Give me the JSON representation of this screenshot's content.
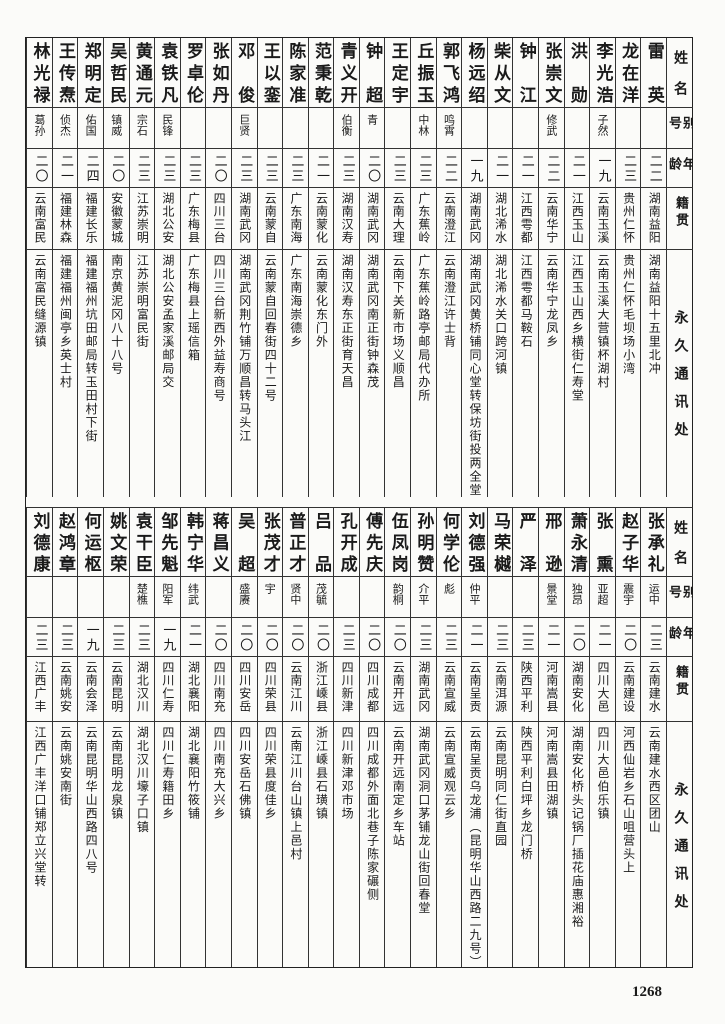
{
  "headers": {
    "name": "姓名",
    "alias": "别号",
    "age": "年龄",
    "native": "籍贯",
    "address": "永久通讯处"
  },
  "top_table": [
    {
      "name": "雷英",
      "alias": "",
      "age": "二二",
      "native": "湖南益阳",
      "address": "湖南益阳十五里北冲"
    },
    {
      "name": "龙在洋",
      "alias": "",
      "age": "二三",
      "native": "贵州仁怀",
      "address": "贵州仁怀毛坝场小湾"
    },
    {
      "name": "李光浩",
      "alias": "子然",
      "age": "一九",
      "native": "云南玉溪",
      "address": "云南玉溪大营镇杯湖村"
    },
    {
      "name": "洪勋",
      "alias": "",
      "age": "二一",
      "native": "江西玉山",
      "address": "江西玉山西乡横街仁寿堂"
    },
    {
      "name": "张崇文",
      "alias": "修武",
      "age": "二二",
      "native": "云南华宁",
      "address": "云南华宁龙凤乡"
    },
    {
      "name": "钟江",
      "alias": "",
      "age": "二一",
      "native": "江西雩都",
      "address": "江西雩都马鞍石"
    },
    {
      "name": "柴从文",
      "alias": "",
      "age": "二一",
      "native": "湖北浠水",
      "address": "湖北浠水关口跨河镇"
    },
    {
      "name": "杨远绍",
      "alias": "",
      "age": "一九",
      "native": "湖南武冈",
      "address": "湖南武冈黄桥铺同心堂转保坊街投两全堂"
    },
    {
      "name": "郭飞鸿",
      "alias": "鸣霄",
      "age": "二二",
      "native": "云南澄江",
      "address": "云南澄江许士背"
    },
    {
      "name": "丘振玉",
      "alias": "中林",
      "age": "二三",
      "native": "广东蕉岭",
      "address": "广东蕉岭路亭邮局代办所"
    },
    {
      "name": "王定宇",
      "alias": "",
      "age": "二三",
      "native": "云南大理",
      "address": "云南下关新市场义顺昌"
    },
    {
      "name": "钟超",
      "alias": "青",
      "age": "二〇",
      "native": "湖南武冈",
      "address": "湖南武冈南正街钟森茂"
    },
    {
      "name": "青义开",
      "alias": "伯衡",
      "age": "二三",
      "native": "湖南汉寿",
      "address": "湖南汉寿东正街育天昌"
    },
    {
      "name": "范秉乾",
      "alias": "",
      "age": "二一",
      "native": "云南蒙化",
      "address": "云南蒙化东门外"
    },
    {
      "name": "陈家准",
      "alias": "",
      "age": "二三",
      "native": "广东南海",
      "address": "广东南海崇德乡"
    },
    {
      "name": "王以銮",
      "alias": "",
      "age": "二三",
      "native": "云南蒙自",
      "address": "云南蒙自回春街四十二号"
    },
    {
      "name": "邓俊",
      "alias": "巨贤",
      "age": "二三",
      "native": "湖南武冈",
      "address": "湖南武冈荆竹铺万顺昌转马头江"
    },
    {
      "name": "张如丹",
      "alias": "",
      "age": "二〇",
      "native": "四川三台",
      "address": "四川三台新西外益寿商号"
    },
    {
      "name": "罗卓伦",
      "alias": "",
      "age": "二三",
      "native": "广东梅县",
      "address": "广东梅县上瑶信箱"
    },
    {
      "name": "袁铁凡",
      "alias": "民锋",
      "age": "二三",
      "native": "湖北公安",
      "address": "湖北公安孟家溪邮局交"
    },
    {
      "name": "黄通元",
      "alias": "宗石",
      "age": "二三",
      "native": "江苏崇明",
      "address": "江苏崇明富民街"
    },
    {
      "name": "吴哲民",
      "alias": "镇威",
      "age": "二〇",
      "native": "安徽蒙城",
      "address": "南京黄泥冈八十八号"
    },
    {
      "name": "郑明定",
      "alias": "佑国",
      "age": "二四",
      "native": "福建长乐",
      "address": "福建福州坑田邮局转玉田村下街"
    },
    {
      "name": "王传焘",
      "alias": "侦杰",
      "age": "二一",
      "native": "福建林森",
      "address": "福建福州闽亭乡英士村"
    },
    {
      "name": "林光禄",
      "alias": "葛孙",
      "age": "二〇",
      "native": "云南富民",
      "address": "云南富民缝源镇"
    }
  ],
  "bottom_table": [
    {
      "name": "张承礼",
      "alias": "运中",
      "age": "二三",
      "native": "云南建水",
      "address": "云南建水西区团山"
    },
    {
      "name": "赵子华",
      "alias": "震宇",
      "age": "二〇",
      "native": "云南建设",
      "address": "河西仙岩乡石山咀营头上"
    },
    {
      "name": "张熏",
      "alias": "亚超",
      "age": "二一",
      "native": "四川大邑",
      "address": "四川大邑伯乐镇"
    },
    {
      "name": "萧永清",
      "alias": "独昂",
      "age": "二〇",
      "native": "湖南安化",
      "address": "湖南安化桥头记锅厂插花庙惠湘裕"
    },
    {
      "name": "邢逊",
      "alias": "景堂",
      "age": "二一",
      "native": "河南嵩县",
      "address": "河南嵩县田湖镇"
    },
    {
      "name": "严泽",
      "alias": "",
      "age": "二三",
      "native": "陕西平利",
      "address": "陕西平利白坪乡龙门桥"
    },
    {
      "name": "马荣樾",
      "alias": "",
      "age": "二三",
      "native": "云南洱源",
      "address": "云南昆明同仁街直园"
    },
    {
      "name": "刘德强",
      "alias": "仲平",
      "age": "二一",
      "native": "云南呈贡",
      "address": "云南呈贡乌龙浦（昆明华山西路二九号）"
    },
    {
      "name": "何学伦",
      "alias": "彪",
      "age": "二三",
      "native": "云南宣威",
      "address": "云南宣威观云乡"
    },
    {
      "name": "孙明赞",
      "alias": "介平",
      "age": "二三",
      "native": "湖南武冈",
      "address": "湖南武冈洞口茅铺龙山街回春堂"
    },
    {
      "name": "伍凤岗",
      "alias": "韵桐",
      "age": "二〇",
      "native": "云南开远",
      "address": "云南开远南定乡车站"
    },
    {
      "name": "傅先庆",
      "alias": "",
      "age": "二〇",
      "native": "四川成都",
      "address": "四川成都外面北巷子陈家碾侧"
    },
    {
      "name": "孔开成",
      "alias": "",
      "age": "二三",
      "native": "四川新津",
      "address": "四川新津邓市场"
    },
    {
      "name": "吕品",
      "alias": "茂毓",
      "age": "二〇",
      "native": "浙江嵊县",
      "address": "浙江嵊县石璜镇"
    },
    {
      "name": "普正才",
      "alias": "贤中",
      "age": "二〇",
      "native": "云南江川",
      "address": "云南江川台山镇上邑村"
    },
    {
      "name": "张茂才",
      "alias": "宇",
      "age": "二〇",
      "native": "四川荣县",
      "address": "四川荣县度佳乡"
    },
    {
      "name": "吴超",
      "alias": "盛赓",
      "age": "二〇",
      "native": "四川安岳",
      "address": "四川安岳石佛镇"
    },
    {
      "name": "蒋昌义",
      "alias": "",
      "age": "二〇",
      "native": "四川南充",
      "address": "四川南充大兴乡"
    },
    {
      "name": "韩宁华",
      "alias": "纬武",
      "age": "二一",
      "native": "湖北襄阳",
      "address": "湖北襄阳竹筱铺"
    },
    {
      "name": "邹先魁",
      "alias": "阳军",
      "age": "一九",
      "native": "四川仁寿",
      "address": "四川仁寿籍田乡"
    },
    {
      "name": "袁干臣",
      "alias": "楚樵",
      "age": "二三",
      "native": "湖北汉川",
      "address": "湖北汉川壕子口镇"
    },
    {
      "name": "姚文荣",
      "alias": "",
      "age": "二三",
      "native": "云南昆明",
      "address": "云南昆明龙泉镇"
    },
    {
      "name": "何运枢",
      "alias": "",
      "age": "一九",
      "native": "云南会泽",
      "address": "云南昆明华山西路四八号"
    },
    {
      "name": "赵鸿章",
      "alias": "",
      "age": "二三",
      "native": "云南姚安",
      "address": "云南姚安南街"
    },
    {
      "name": "刘德康",
      "alias": "",
      "age": "二三",
      "native": "江西广丰",
      "address": "江西广丰洋口铺郑立兴堂转"
    }
  ],
  "page_number": "1268"
}
